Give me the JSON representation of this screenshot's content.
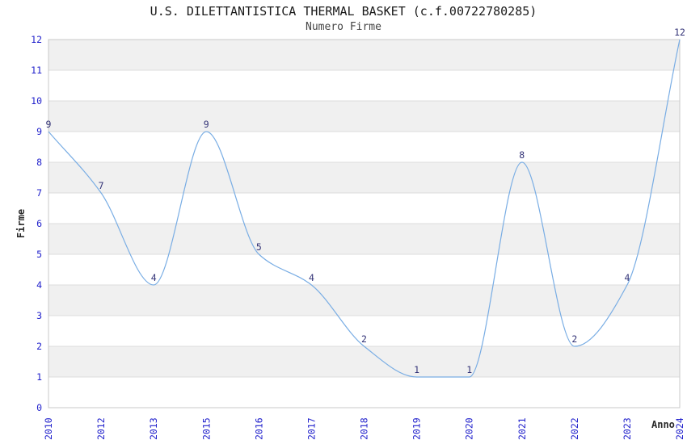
{
  "chart_data": {
    "type": "line",
    "title": "U.S. DILETTANTISTICA THERMAL BASKET (c.f.00722780285)",
    "subtitle": "Numero Firme",
    "xlabel": "Anno",
    "ylabel": "Firme",
    "categories": [
      "2010",
      "2012",
      "2013",
      "2015",
      "2016",
      "2017",
      "2018",
      "2019",
      "2020",
      "2021",
      "2022",
      "2023",
      "2024"
    ],
    "series": [
      {
        "name": "Numero Firme",
        "values": [
          9,
          7,
          4,
          9,
          5,
          4,
          2,
          1,
          1,
          8,
          2,
          4,
          12
        ]
      }
    ],
    "ylim": [
      0,
      12
    ],
    "ytick_step": 1,
    "show_point_labels": true,
    "grid": "horizontal gridlines with alternating shaded bands",
    "legend_position": "none",
    "line_style": "smooth monotone curve, no markers",
    "colors": {
      "line": "#79ade4",
      "tick_labels": "#2222cc",
      "point_labels": "#333377",
      "band": "#f0f0f0",
      "gridline": "#dcdcdc",
      "plot_border": "#c8c8c8",
      "title": "#1a1a1a",
      "subtitle": "#444444",
      "axis_labels": "#2a2a2a",
      "background": "#ffffff"
    }
  }
}
